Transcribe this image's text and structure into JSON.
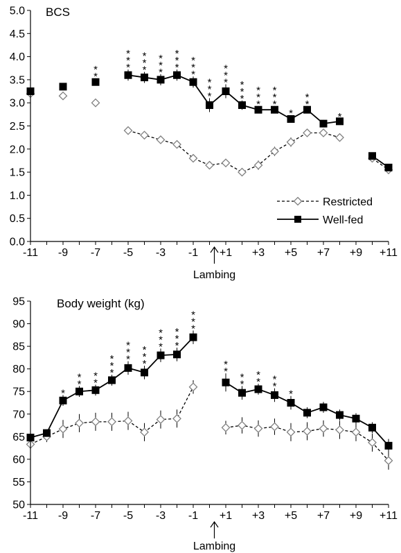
{
  "chart_data": [
    {
      "type": "line",
      "title": "BCS",
      "xlabel": "Lambing",
      "ylabel": "",
      "ylim": [
        0,
        5
      ],
      "xlim": [
        -11,
        11
      ],
      "xticks": [
        "-11",
        "-9",
        "-7",
        "-5",
        "-3",
        "-1",
        "+1",
        "+3",
        "+5",
        "+7",
        "+9",
        "+11"
      ],
      "yticks": [
        "0.0",
        "0.5",
        "1.0",
        "1.5",
        "2.0",
        "2.5",
        "3.0",
        "3.5",
        "4.0",
        "4.5",
        "5.0"
      ],
      "legend_position": "bottom-right",
      "series": [
        {
          "name": "Restricted",
          "color": "#808080",
          "marker": "open-diamond",
          "line": "dashed",
          "points": [
            [
              -11,
              3.2
            ],
            [
              -9,
              3.15
            ],
            [
              -7,
              3.0
            ],
            [
              -5,
              2.4
            ],
            [
              -4,
              2.3
            ],
            [
              -3,
              2.2
            ],
            [
              -2,
              2.1
            ],
            [
              -1,
              1.8
            ],
            [
              0,
              1.65
            ],
            [
              1,
              1.7
            ],
            [
              2,
              1.5
            ],
            [
              3,
              1.65
            ],
            [
              4,
              1.95
            ],
            [
              5,
              2.15
            ],
            [
              6,
              2.35
            ],
            [
              7,
              2.35
            ],
            [
              8,
              2.25
            ],
            [
              10,
              1.8
            ],
            [
              11,
              1.55
            ]
          ],
          "errors": [
            0.05,
            0.05,
            0.05,
            0.06,
            0.06,
            0.06,
            0.06,
            0.06,
            0.06,
            0.06,
            0.06,
            0.1,
            0.1,
            0.1,
            0.08,
            0.08,
            0.06,
            0.06,
            0.06
          ],
          "segments": [
            [
              0,
              0
            ],
            [
              1,
              1
            ],
            [
              2,
              2
            ],
            [
              3,
              16
            ],
            [
              17,
              18
            ]
          ]
        },
        {
          "name": "Well-fed",
          "color": "#000000",
          "marker": "filled-square",
          "line": "solid",
          "points": [
            [
              -11,
              3.25
            ],
            [
              -9,
              3.35
            ],
            [
              -7,
              3.45
            ],
            [
              -5,
              3.6
            ],
            [
              -4,
              3.55
            ],
            [
              -3,
              3.5
            ],
            [
              -2,
              3.6
            ],
            [
              -1,
              3.45
            ],
            [
              0,
              2.95
            ],
            [
              1,
              3.25
            ],
            [
              2,
              2.95
            ],
            [
              3,
              2.85
            ],
            [
              4,
              2.85
            ],
            [
              5,
              2.65
            ],
            [
              6,
              2.85
            ],
            [
              7,
              2.55
            ],
            [
              8,
              2.6
            ],
            [
              10,
              1.85
            ],
            [
              11,
              1.6
            ]
          ],
          "errors": [
            0.05,
            0.05,
            0.08,
            0.12,
            0.12,
            0.12,
            0.12,
            0.12,
            0.15,
            0.15,
            0.1,
            0.08,
            0.08,
            0.08,
            0.08,
            0.08,
            0.06,
            0.06,
            0.06
          ],
          "segments": [
            [
              0,
              0
            ],
            [
              1,
              1
            ],
            [
              2,
              2
            ],
            [
              3,
              16
            ],
            [
              17,
              18
            ]
          ]
        }
      ],
      "significance": [
        {
          "x": -7,
          "label": "**"
        },
        {
          "x": -5,
          "label": "***"
        },
        {
          "x": -4,
          "label": "***"
        },
        {
          "x": -3,
          "label": "***"
        },
        {
          "x": -2,
          "label": "***"
        },
        {
          "x": -1,
          "label": "***"
        },
        {
          "x": 0,
          "label": "***"
        },
        {
          "x": 1,
          "label": "***"
        },
        {
          "x": 2,
          "label": "***"
        },
        {
          "x": 3,
          "label": "***"
        },
        {
          "x": 4,
          "label": "***"
        },
        {
          "x": 5,
          "label": "*"
        },
        {
          "x": 6,
          "label": "**"
        },
        {
          "x": 8,
          "label": "*"
        }
      ]
    },
    {
      "type": "line",
      "title": "Body weight (kg)",
      "xlabel": "Lambing",
      "ylabel": "",
      "ylim": [
        50,
        95
      ],
      "xlim": [
        -11,
        11
      ],
      "xticks": [
        "-11",
        "-9",
        "-7",
        "-5",
        "-3",
        "-1",
        "+1",
        "+3",
        "+5",
        "+7",
        "+9",
        "+11"
      ],
      "yticks": [
        "50",
        "55",
        "60",
        "65",
        "70",
        "75",
        "80",
        "85",
        "90",
        "95"
      ],
      "series": [
        {
          "name": "Restricted",
          "color": "#808080",
          "marker": "open-diamond",
          "line": "dashed",
          "points": [
            [
              -11,
              63.3
            ],
            [
              -10,
              65.0
            ],
            [
              -9,
              66.7
            ],
            [
              -8,
              68.0
            ],
            [
              -7,
              68.3
            ],
            [
              -6,
              68.3
            ],
            [
              -5,
              68.5
            ],
            [
              -4,
              66.0
            ],
            [
              -3,
              68.8
            ],
            [
              -2,
              69.0
            ],
            [
              -1,
              76.0
            ],
            [
              1,
              67.0
            ],
            [
              2,
              67.5
            ],
            [
              3,
              66.8
            ],
            [
              4,
              67.2
            ],
            [
              5,
              66.0
            ],
            [
              6,
              66.2
            ],
            [
              7,
              66.8
            ],
            [
              8,
              66.5
            ],
            [
              9,
              66.0
            ],
            [
              10,
              63.7
            ],
            [
              11,
              59.7
            ]
          ],
          "errors": [
            1.0,
            1.2,
            2.0,
            2.0,
            2.0,
            2.0,
            2.0,
            2.0,
            2.0,
            2.0,
            1.5,
            1.5,
            1.8,
            1.8,
            1.8,
            2.0,
            2.0,
            1.8,
            2.0,
            2.0,
            2.0,
            2.0
          ],
          "segments": [
            [
              0,
              10
            ],
            [
              11,
              21
            ]
          ]
        },
        {
          "name": "Well-fed",
          "color": "#000000",
          "marker": "filled-square",
          "line": "solid",
          "points": [
            [
              -11,
              64.8
            ],
            [
              -10,
              65.8
            ],
            [
              -9,
              73.0
            ],
            [
              -8,
              75.0
            ],
            [
              -7,
              75.3
            ],
            [
              -6,
              77.5
            ],
            [
              -5,
              80.2
            ],
            [
              -4,
              79.2
            ],
            [
              -3,
              83.0
            ],
            [
              -2,
              83.2
            ],
            [
              -1,
              87.0
            ],
            [
              1,
              77.0
            ],
            [
              2,
              74.7
            ],
            [
              3,
              75.5
            ],
            [
              4,
              74.2
            ],
            [
              5,
              72.5
            ],
            [
              6,
              70.3
            ],
            [
              7,
              71.5
            ],
            [
              8,
              69.8
            ],
            [
              9,
              69.0
            ],
            [
              10,
              67.0
            ],
            [
              11,
              63.0
            ]
          ],
          "errors": [
            0.8,
            0.8,
            1.2,
            1.2,
            1.2,
            1.2,
            1.5,
            1.5,
            1.5,
            1.5,
            1.5,
            2.0,
            1.5,
            1.2,
            1.5,
            1.5,
            1.2,
            1.2,
            1.2,
            1.2,
            1.2,
            1.5
          ],
          "segments": [
            [
              0,
              10
            ],
            [
              11,
              21
            ]
          ]
        }
      ],
      "significance": [
        {
          "x": -9,
          "label": "*"
        },
        {
          "x": -8,
          "label": "**"
        },
        {
          "x": -7,
          "label": "**"
        },
        {
          "x": -6,
          "label": "***"
        },
        {
          "x": -5,
          "label": "***"
        },
        {
          "x": -4,
          "label": "***"
        },
        {
          "x": -3,
          "label": "***"
        },
        {
          "x": -2,
          "label": "***"
        },
        {
          "x": -1,
          "label": "***"
        },
        {
          "x": 1,
          "label": "**"
        },
        {
          "x": 2,
          "label": "**"
        },
        {
          "x": 3,
          "label": "**"
        },
        {
          "x": 4,
          "label": "**"
        },
        {
          "x": 5,
          "label": "*"
        }
      ]
    }
  ]
}
